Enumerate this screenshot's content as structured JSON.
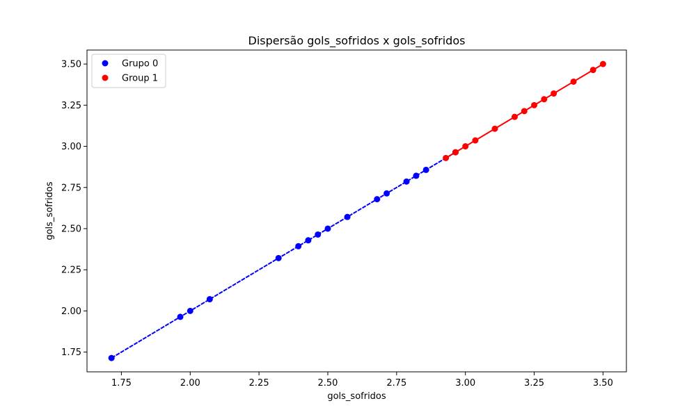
{
  "chart_data": {
    "type": "scatter",
    "title": "Dispersão gols_sofridos x gols_sofridos",
    "xlabel": "gols_sofridos",
    "ylabel": "gols_sofridos",
    "xlim": [
      1.625,
      3.585
    ],
    "ylim": [
      1.63,
      3.585
    ],
    "xticks": [
      "1.75",
      "2.00",
      "2.25",
      "2.50",
      "2.75",
      "3.00",
      "3.25",
      "3.50"
    ],
    "yticks": [
      "1.75",
      "2.00",
      "2.25",
      "2.50",
      "2.75",
      "3.00",
      "3.25",
      "3.50"
    ],
    "grid": false,
    "legend_position": "top-left",
    "series": [
      {
        "name": "Grupo 0",
        "color": "#0000ff",
        "x": [
          1.714,
          1.964,
          2.0,
          2.071,
          2.321,
          2.393,
          2.429,
          2.464,
          2.5,
          2.571,
          2.679,
          2.714,
          2.786,
          2.821,
          2.857,
          2.964
        ],
        "y": [
          1.714,
          1.964,
          2.0,
          2.071,
          2.321,
          2.393,
          2.429,
          2.464,
          2.5,
          2.571,
          2.679,
          2.714,
          2.786,
          2.821,
          2.857,
          2.964
        ],
        "line": {
          "x": [
            1.714,
            2.964
          ],
          "y": [
            1.714,
            2.964
          ],
          "dashed": true
        }
      },
      {
        "name": "Group 1",
        "color": "#ff0000",
        "x": [
          2.929,
          2.964,
          3.0,
          3.036,
          3.107,
          3.179,
          3.214,
          3.25,
          3.286,
          3.321,
          3.393,
          3.464,
          3.5
        ],
        "y": [
          2.929,
          2.964,
          3.0,
          3.036,
          3.107,
          3.179,
          3.214,
          3.25,
          3.286,
          3.321,
          3.393,
          3.464,
          3.5
        ],
        "line": {
          "x": [
            2.929,
            3.5
          ],
          "y": [
            2.929,
            3.5
          ],
          "dashed": false
        }
      }
    ]
  }
}
